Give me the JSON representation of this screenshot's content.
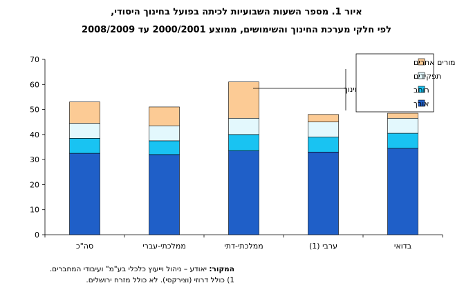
{
  "title_line1": "איור 1. מספר השעות השבועיות לכיתה בפועל בחינוך היסודי,",
  "title_line2": "לפי חלקי מערכת החינוך והשימושים, ממוצע 2000/2001 עד 2008/2009",
  "source_label": "המקור:",
  "source_text": "יאודע – ניהול וייעוץ כלכלי בע\"מ\" ועיבודי המחברים.",
  "footnote": "1) כולל דרוזי (וצירקסי). לא כולל מזרח ירושלים.",
  "callout_text": "מורי משרד החינוך",
  "colors": {
    "orech": "#1F5FC8",
    "rochav": "#19C3F2",
    "tafkidim": "#E3F8FD",
    "morim_acherim": "#FCCB95"
  },
  "chart_data": {
    "type": "bar",
    "stacked": true,
    "categories": [
      "סה\"כ",
      "ממלכתי-עברי",
      "ממלכתי-דתי",
      "ערבי (1)",
      "בדואי"
    ],
    "series": [
      {
        "name": "אורך",
        "values": [
          32.5,
          32,
          33.5,
          33,
          34.5
        ]
      },
      {
        "name": "רוחב",
        "values": [
          6,
          5.5,
          6.5,
          6,
          6
        ]
      },
      {
        "name": "תפקידים",
        "values": [
          6,
          6,
          6.5,
          6,
          6
        ]
      },
      {
        "name": "מורים אחרים",
        "values": [
          8.5,
          7.5,
          14.5,
          3,
          2
        ]
      }
    ],
    "ylim": [
      0,
      70
    ],
    "yticks": [
      "0",
      "10",
      "20",
      "30",
      "40",
      "50",
      "60",
      "70"
    ],
    "grid": false,
    "legend_position": "top-right"
  }
}
